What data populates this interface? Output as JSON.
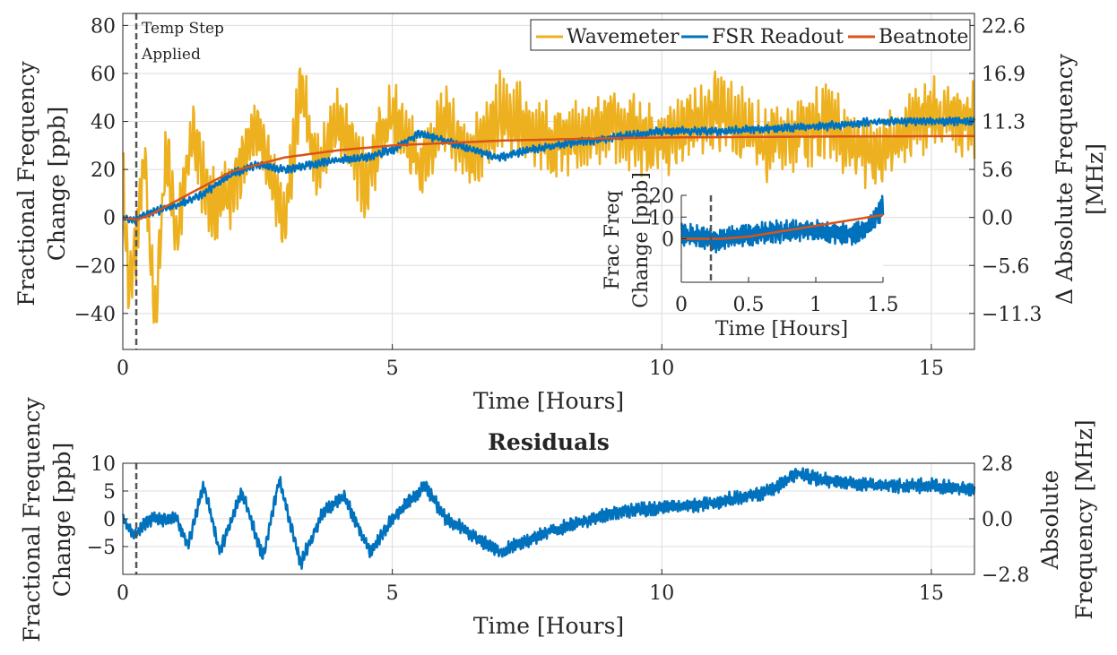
{
  "chart_data": [
    {
      "type": "line",
      "panel": "main",
      "xlabel": "Time [Hours]",
      "ylabel_line1": "Fractional Frequency",
      "ylabel_line2": "Change [ppb]",
      "ylabel_right_line1": "Δ Absolute Frequency",
      "ylabel_right_line2": "[MHz]",
      "xlim": [
        0,
        15.8
      ],
      "ylim": [
        -55,
        85
      ],
      "xticks": [
        0,
        5,
        10,
        15
      ],
      "yticks": [
        -40,
        -20,
        0,
        20,
        40,
        60,
        80
      ],
      "ytick_labels": [
        "−40",
        "−20",
        "0",
        "20",
        "40",
        "60",
        "80"
      ],
      "right_ticks": [
        {
          "value": -40,
          "label": "−11.3"
        },
        {
          "value": -20,
          "label": "−5.6"
        },
        {
          "value": 0,
          "label": "0.0"
        },
        {
          "value": 20,
          "label": "5.6"
        },
        {
          "value": 40,
          "label": "11.3"
        },
        {
          "value": 60,
          "label": "16.9"
        },
        {
          "value": 80,
          "label": "22.6"
        }
      ],
      "annotation": {
        "x": 0.25,
        "line1": "Temp Step",
        "line2": "Applied"
      },
      "legend_position": "top-right",
      "series": [
        {
          "name": "Wavemeter",
          "color": "#EDB120",
          "x": [
            0,
            0.1,
            0.25,
            0.4,
            0.6,
            0.8,
            1.0,
            1.3,
            1.6,
            2.0,
            2.5,
            3.0,
            3.3,
            3.6,
            4.0,
            4.5,
            5.0,
            5.5,
            6.0,
            6.5,
            7.0,
            8.0,
            9.0,
            10.0,
            11.0,
            12.0,
            13.0,
            14.0,
            15.0,
            15.8
          ],
          "y": [
            20,
            -30,
            -10,
            25,
            -45,
            30,
            -10,
            35,
            5,
            10,
            40,
            -5,
            55,
            20,
            40,
            15,
            45,
            20,
            40,
            25,
            45,
            30,
            40,
            30,
            45,
            30,
            40,
            25,
            45,
            40
          ],
          "noise_amplitude": 18
        },
        {
          "name": "FSR Readout",
          "color": "#0072BD",
          "x": [
            0,
            0.25,
            0.5,
            1.0,
            1.2,
            1.5,
            2.0,
            2.5,
            3.0,
            3.5,
            4.0,
            4.5,
            5.0,
            5.5,
            6.0,
            6.5,
            7.0,
            7.5,
            8.0,
            9.0,
            10.0,
            11.0,
            12.0,
            13.0,
            14.0,
            15.0,
            15.8
          ],
          "y": [
            0,
            -1,
            2,
            5,
            7,
            10,
            18,
            22,
            20,
            22,
            24,
            25,
            28,
            35,
            32,
            28,
            25,
            28,
            30,
            33,
            36,
            36,
            37,
            38,
            40,
            40,
            40
          ],
          "noise_amplitude": 2
        },
        {
          "name": "Beatnote",
          "color": "#D95319",
          "x": [
            0,
            0.25,
            0.5,
            1.0,
            1.5,
            2.0,
            3.0,
            4.0,
            5.0,
            6.0,
            7.0,
            8.0,
            9.0,
            10.0,
            12.0,
            14.0,
            15.8
          ],
          "y": [
            0,
            -1,
            1,
            7,
            13,
            19,
            25,
            28,
            30,
            31,
            32,
            32.5,
            33,
            33.3,
            33.6,
            33.8,
            33.9
          ]
        }
      ]
    },
    {
      "type": "line",
      "panel": "inset",
      "xlabel": "Time [Hours]",
      "ylabel_line1": "Frac Freq",
      "ylabel_line2": "Change [ppb]",
      "xlim": [
        0,
        1.5
      ],
      "ylim": [
        -20,
        20
      ],
      "xticks": [
        0,
        0.5,
        1,
        1.5
      ],
      "xtick_labels": [
        "0",
        "0.5",
        "1",
        "1.5"
      ],
      "yticks": [
        0,
        10,
        20
      ],
      "series": [
        {
          "name": "FSR Readout",
          "color": "#0072BD",
          "x": [
            0,
            0.1,
            0.2,
            0.25,
            0.3,
            0.5,
            0.7,
            0.9,
            1.0,
            1.1,
            1.2,
            1.3,
            1.4,
            1.5
          ],
          "y": [
            2,
            1,
            0,
            -2,
            0,
            2,
            3,
            4,
            4,
            2,
            2,
            3,
            6,
            15
          ],
          "noise_amplitude": 6
        },
        {
          "name": "Beatnote",
          "color": "#D95319",
          "x": [
            0,
            0.2,
            0.3,
            0.5,
            0.7,
            0.9,
            1.1,
            1.3,
            1.5
          ],
          "y": [
            0,
            0,
            0,
            1,
            3,
            5,
            7,
            9,
            11
          ]
        }
      ]
    },
    {
      "type": "line",
      "panel": "residuals",
      "title": "Residuals",
      "xlabel": "Time [Hours]",
      "ylabel_line1": "Fractional Frequency",
      "ylabel_line2": "Change [ppb]",
      "ylabel_right_line1": "Absolute",
      "ylabel_right_line2": "Frequency [MHz]",
      "xlim": [
        0,
        15.8
      ],
      "ylim": [
        -10,
        10
      ],
      "xticks": [
        0,
        5,
        10,
        15
      ],
      "yticks": [
        -5,
        0,
        5,
        10
      ],
      "ytick_labels": [
        "−5",
        "0",
        "5",
        "10"
      ],
      "right_ticks": [
        {
          "value": -10,
          "label": "−2.8"
        },
        {
          "value": 0,
          "label": "0.0"
        },
        {
          "value": 10,
          "label": "2.8"
        }
      ],
      "series": [
        {
          "name": "Residual",
          "color": "#0072BD",
          "x": [
            0,
            0.2,
            0.5,
            1.0,
            1.2,
            1.5,
            1.8,
            2.2,
            2.6,
            2.9,
            3.3,
            3.7,
            4.1,
            4.6,
            5.0,
            5.6,
            6.0,
            6.5,
            7.0,
            7.5,
            8.0,
            9.0,
            10.0,
            11.0,
            12.0,
            12.5,
            13.0,
            14.0,
            15.0,
            15.8
          ],
          "y": [
            0,
            -3,
            0,
            0,
            -5,
            6,
            -6,
            5,
            -7,
            7,
            -8,
            1,
            4,
            -6,
            0,
            6,
            0,
            -3,
            -6,
            -4,
            -2,
            1,
            2,
            3,
            5,
            8,
            7,
            6,
            6,
            5
          ],
          "noise_amplitude": 1.5
        }
      ]
    }
  ]
}
